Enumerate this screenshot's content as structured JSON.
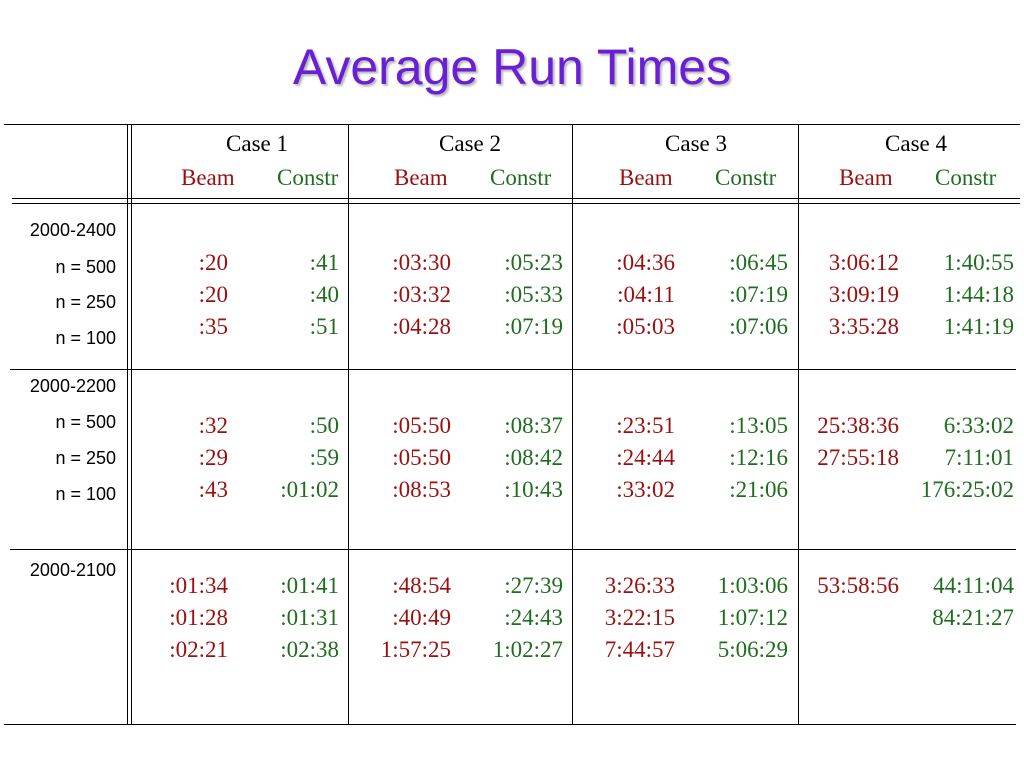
{
  "title": "Average Run Times",
  "colors": {
    "title": "#6a1fd6",
    "beam": "#9b0f0f",
    "constr": "#1f6d1f"
  },
  "table": {
    "cases": [
      "Case 1",
      "Case 2",
      "Case 3",
      "Case 4"
    ],
    "sub_headers": [
      "Beam",
      "Constr"
    ],
    "groups": [
      {
        "label": "2000-2400",
        "rows": [
          {
            "label": "n = 500",
            "values": [
              ":20",
              ":41",
              ":03:30",
              ":05:23",
              ":04:36",
              ":06:45",
              "3:06:12",
              "1:40:55"
            ]
          },
          {
            "label": "n = 250",
            "values": [
              ":20",
              ":40",
              ":03:32",
              ":05:33",
              ":04:11",
              ":07:19",
              "3:09:19",
              "1:44:18"
            ]
          },
          {
            "label": "n = 100",
            "values": [
              ":35",
              ":51",
              ":04:28",
              ":07:19",
              ":05:03",
              ":07:06",
              "3:35:28",
              "1:41:19"
            ]
          }
        ]
      },
      {
        "label": "2000-2200",
        "rows": [
          {
            "label": "n = 500",
            "values": [
              ":32",
              ":50",
              ":05:50",
              ":08:37",
              ":23:51",
              ":13:05",
              "25:38:36",
              "6:33:02"
            ]
          },
          {
            "label": "n = 250",
            "values": [
              ":29",
              ":59",
              ":05:50",
              ":08:42",
              ":24:44",
              ":12:16",
              "27:55:18",
              "7:11:01"
            ]
          },
          {
            "label": "n = 100",
            "values": [
              ":43",
              ":01:02",
              ":08:53",
              ":10:43",
              ":33:02",
              ":21:06",
              "",
              "176:25:02"
            ]
          }
        ]
      },
      {
        "label": "2000-2100",
        "rows": [
          {
            "label": "",
            "values": [
              ":01:34",
              ":01:41",
              ":48:54",
              ":27:39",
              "3:26:33",
              "1:03:06",
              "53:58:56",
              "44:11:04"
            ]
          },
          {
            "label": "",
            "values": [
              ":01:28",
              ":01:31",
              ":40:49",
              ":24:43",
              "3:22:15",
              "1:07:12",
              "",
              "84:21:27"
            ]
          },
          {
            "label": "",
            "values": [
              ":02:21",
              ":02:38",
              "1:57:25",
              "1:02:27",
              "7:44:57",
              "5:06:29",
              "",
              ""
            ]
          }
        ]
      }
    ]
  }
}
